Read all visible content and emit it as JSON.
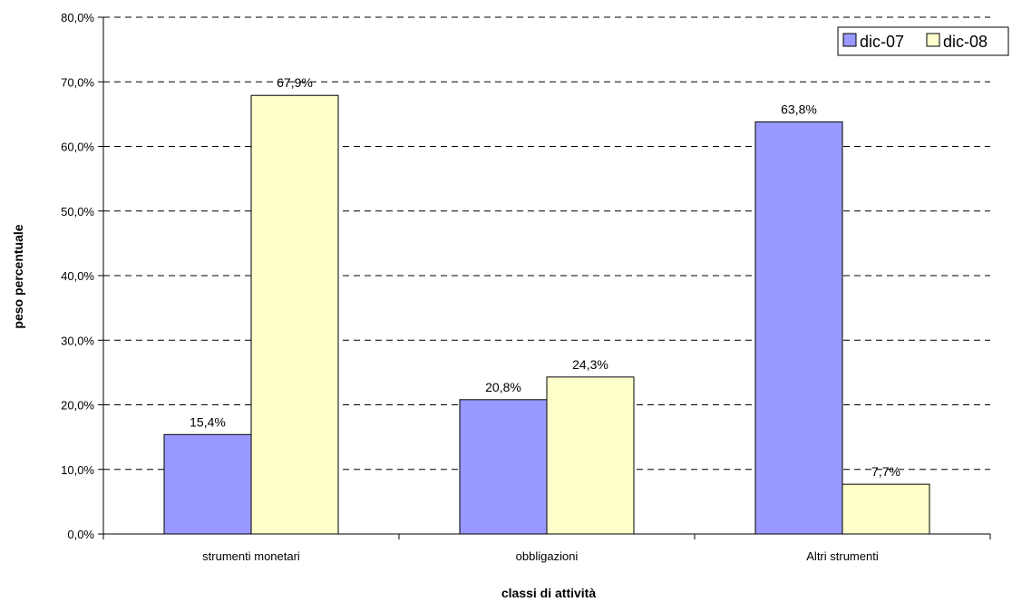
{
  "chart_data": {
    "type": "bar",
    "title": "",
    "xlabel": "classi di attività",
    "ylabel": "peso percentuale",
    "categories": [
      "strumenti monetari",
      "obbligazioni",
      "Altri strumenti"
    ],
    "series": [
      {
        "name": "dic-07",
        "values": [
          15.4,
          20.8,
          63.8
        ],
        "labels": [
          "15,4%",
          "20,8%",
          "63,8%"
        ],
        "color": "#9999FF"
      },
      {
        "name": "dic-08",
        "values": [
          67.9,
          24.3,
          7.7
        ],
        "labels": [
          "67,9%",
          "24,3%",
          "7,7%"
        ],
        "color": "#FFFFCC"
      }
    ],
    "ylim": [
      0,
      80
    ],
    "yticks": [
      0,
      10,
      20,
      30,
      40,
      50,
      60,
      70,
      80
    ],
    "ytick_labels": [
      "0,0%",
      "10,0%",
      "20,0%",
      "30,0%",
      "40,0%",
      "50,0%",
      "60,0%",
      "70,0%",
      "80,0%"
    ],
    "grid": "dashed horizontal",
    "legend_position": "top-right"
  }
}
